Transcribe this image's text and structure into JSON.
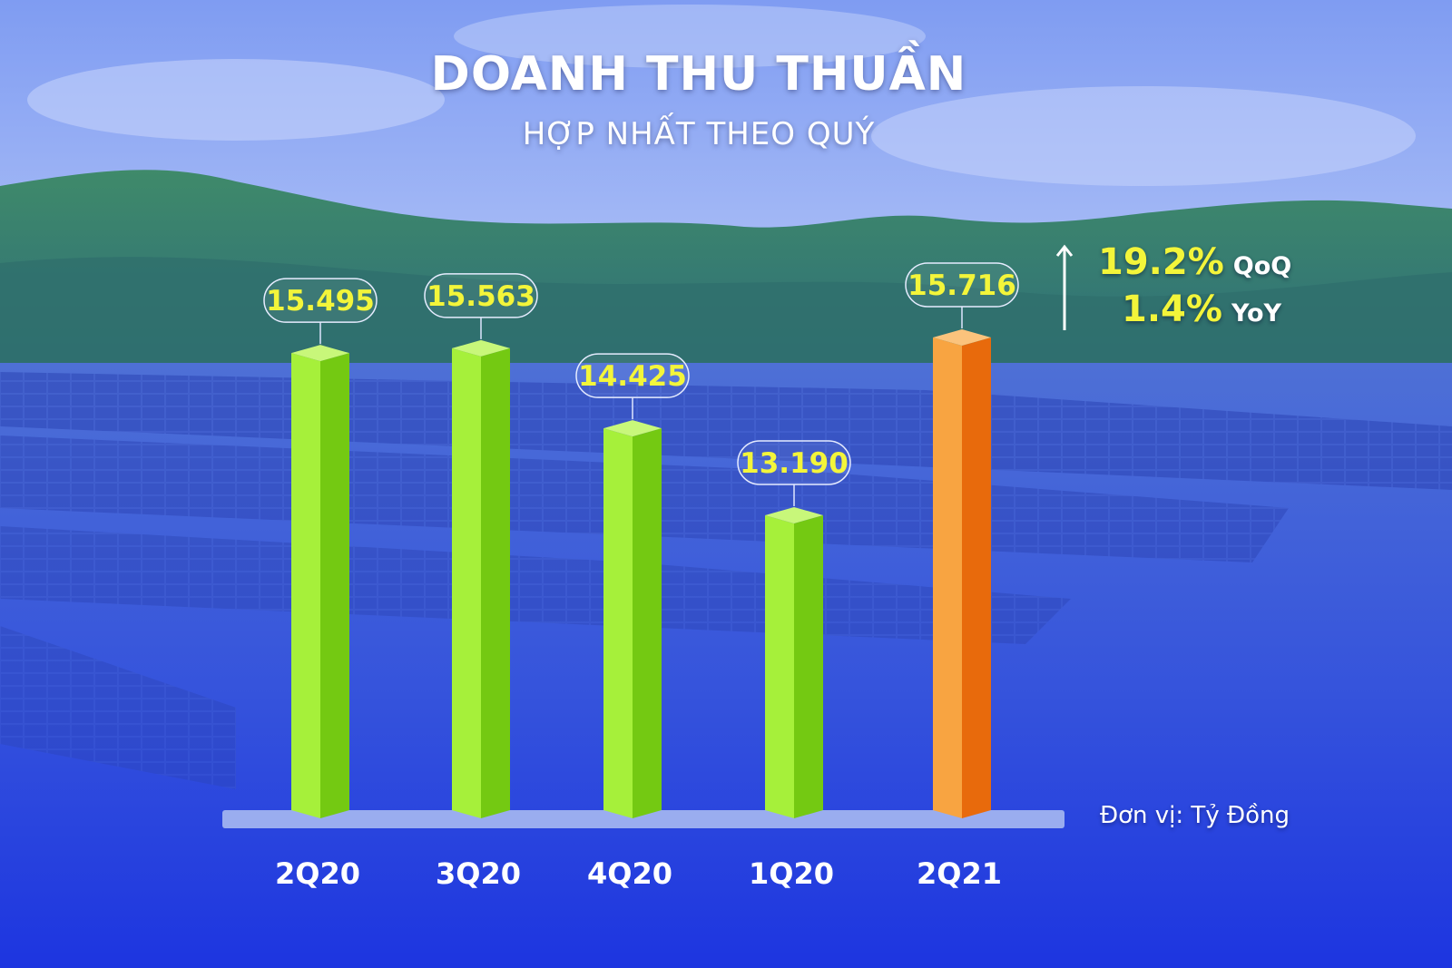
{
  "header": {
    "title": "DOANH THU THUẦN",
    "subtitle": "HỢP NHẤT THEO QUÝ"
  },
  "growth": {
    "qoq_value": "19.2%",
    "qoq_label": "QoQ",
    "yoy_value": "1.4%",
    "yoy_label": "YoY"
  },
  "unit_label": "Đơn vị: Tỷ Đồng",
  "colors": {
    "background_top": "#6f8ff0",
    "background_bottom": "#1d35e0",
    "bar_green": "#8be51a",
    "bar_highlight": "#f58a1f",
    "value_text": "#f3f53a"
  },
  "chart_data": {
    "type": "bar",
    "title": "DOANH THU THUẦN",
    "subtitle": "HỢP NHẤT THEO QUÝ",
    "categories": [
      "2Q20",
      "3Q20",
      "4Q20",
      "1Q20",
      "2Q21"
    ],
    "values": [
      15495,
      15563,
      14425,
      13190,
      15716
    ],
    "value_labels": [
      "15.495",
      "15.563",
      "14.425",
      "13.190",
      "15.716"
    ],
    "highlight_index": 4,
    "ylabel": "Đơn vị: Tỷ Đồng",
    "ylim": [
      9000,
      16000
    ],
    "grid": false,
    "legend": "none"
  }
}
